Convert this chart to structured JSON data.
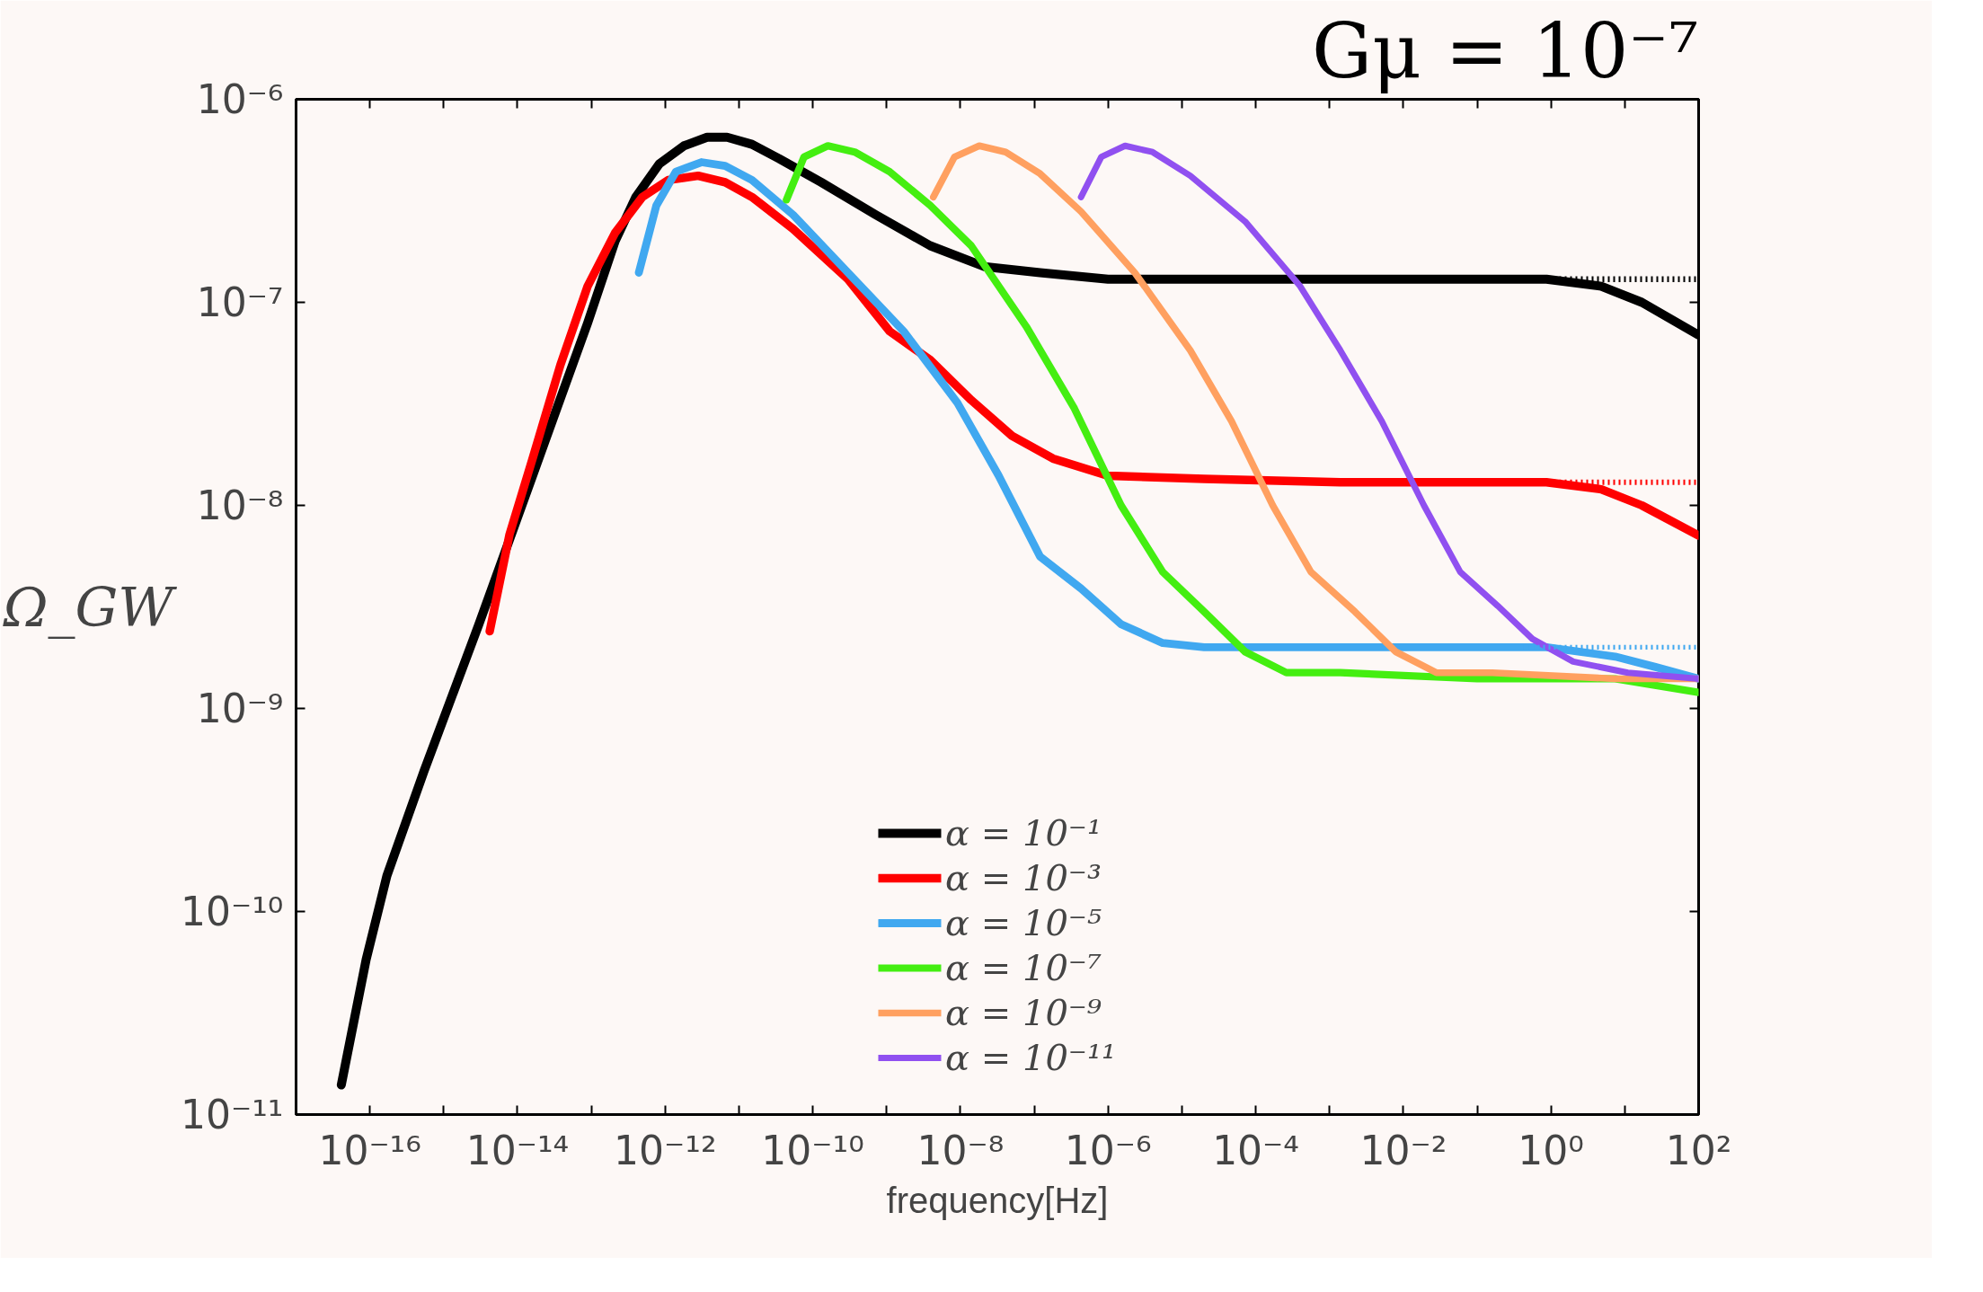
{
  "chart_data": {
    "type": "line",
    "title": "Gμ = 10⁻⁷",
    "xlabel": "frequency[Hz]",
    "ylabel": "Ω_GW",
    "log": "xy",
    "legend": "bottom",
    "line_style": "solid",
    "xlim": [
      1e-17,
      100
    ],
    "ylim": [
      1e-11,
      1e-06
    ],
    "xticks": [
      {
        "value": 1e-17,
        "label": null
      },
      {
        "value": 1e-16,
        "label": "10⁻¹⁶"
      },
      {
        "value": 1e-15,
        "label": null
      },
      {
        "value": 1e-14,
        "label": "10⁻¹⁴"
      },
      {
        "value": 1e-13,
        "label": null
      },
      {
        "value": 1e-12,
        "label": "10⁻¹²"
      },
      {
        "value": 1e-11,
        "label": null
      },
      {
        "value": 1e-10,
        "label": "10⁻¹⁰"
      },
      {
        "value": 1e-09,
        "label": null
      },
      {
        "value": 1e-08,
        "label": "10⁻⁸"
      },
      {
        "value": 1e-07,
        "label": null
      },
      {
        "value": 1e-06,
        "label": "10⁻⁶"
      },
      {
        "value": 1e-05,
        "label": null
      },
      {
        "value": 0.0001,
        "label": "10⁻⁴"
      },
      {
        "value": 0.001,
        "label": null
      },
      {
        "value": 0.01,
        "label": "10⁻²"
      },
      {
        "value": 0.1,
        "label": null
      },
      {
        "value": 1,
        "label": "10⁰"
      },
      {
        "value": 10,
        "label": null
      },
      {
        "value": 100,
        "label": "10²"
      }
    ],
    "yticks": [
      {
        "value": 1e-11,
        "label": "10⁻¹¹"
      },
      {
        "value": 1e-10,
        "label": "10⁻¹⁰"
      },
      {
        "value": 1e-09,
        "label": "10⁻⁹"
      },
      {
        "value": 1e-08,
        "label": "10⁻⁸"
      },
      {
        "value": 1e-07,
        "label": "10⁻⁷"
      },
      {
        "value": 1e-06,
        "label": "10⁻⁶"
      }
    ],
    "series": [
      {
        "name": "α = 10⁻¹",
        "color": "#000000",
        "x": [
          4.1e-17,
          8.9e-17,
          1.7e-16,
          5.4e-16,
          3e-15,
          1.6e-14,
          8.9e-14,
          2.1e-13,
          4e-13,
          8.3e-13,
          1.8e-12,
          3.7e-12,
          6.9e-12,
          1.5e-11,
          3.5e-11,
          1.3e-10,
          7.1e-10,
          3.9e-09,
          2.1e-08,
          1.2e-07,
          1e-06,
          2e-05,
          0.0014,
          0.1,
          0.87,
          4.8,
          17,
          100
        ],
        "values": [
          1.4e-11,
          5.8e-11,
          1.5e-10,
          4.9e-10,
          2.6e-09,
          1.4e-08,
          7.9e-08,
          2e-07,
          3.3e-07,
          4.8e-07,
          5.9e-07,
          6.5e-07,
          6.5e-07,
          6e-07,
          5.1e-07,
          3.9e-07,
          2.7e-07,
          1.9e-07,
          1.5e-07,
          1.4e-07,
          1.3e-07,
          1.3e-07,
          1.3e-07,
          1.3e-07,
          1.3e-07,
          1.2e-07,
          1e-07,
          6.9e-08
        ]
      },
      {
        "name": "α = 10⁻³",
        "color": "#ff0000",
        "x": [
          4.2e-15,
          7.8e-15,
          1.6e-14,
          3.8e-14,
          8.9e-14,
          2.1e-13,
          4.9e-13,
          1.1e-12,
          2.8e-12,
          6.5e-12,
          1.5e-11,
          5.4e-11,
          3e-10,
          1.1e-09,
          3.9e-09,
          1.4e-08,
          5e-08,
          1.8e-07,
          1e-06,
          2e-05,
          0.0014,
          0.87,
          4.8,
          17,
          100
        ],
        "values": [
          2.4e-09,
          7.2e-09,
          1.7e-08,
          4.9e-08,
          1.2e-07,
          2.2e-07,
          3.3e-07,
          4e-07,
          4.2e-07,
          3.9e-07,
          3.3e-07,
          2.3e-07,
          1.3e-07,
          7.2e-08,
          5.2e-08,
          3.3e-08,
          2.2e-08,
          1.7e-08,
          1.4e-08,
          1.35e-08,
          1.3e-08,
          1.3e-08,
          1.2e-08,
          1e-08,
          7.1e-09
        ]
      },
      {
        "name": "α = 10⁻⁵",
        "color": "#40a8f0",
        "x": [
          4.4e-13,
          7.6e-13,
          1.4e-12,
          3.1e-12,
          6.5e-12,
          1.5e-11,
          5.4e-11,
          3e-10,
          1.7e-09,
          9.1e-09,
          3.3e-08,
          1.2e-07,
          4.3e-07,
          1.5e-06,
          5.5e-06,
          2e-05,
          0.0014,
          0.87,
          7.4,
          26,
          100
        ],
        "values": [
          1.4e-07,
          3e-07,
          4.4e-07,
          4.9e-07,
          4.7e-07,
          4e-07,
          2.7e-07,
          1.4e-07,
          7.2e-08,
          3.2e-08,
          1.4e-08,
          5.6e-09,
          3.9e-09,
          2.6e-09,
          2.1e-09,
          2e-09,
          2e-09,
          2e-09,
          1.8e-09,
          1.6e-09,
          1.4e-09
        ]
      },
      {
        "name": "α = 10⁻⁷",
        "color": "#44ee11",
        "x": [
          4.4e-11,
          7.6e-11,
          1.6e-10,
          3.7e-10,
          1.1e-09,
          3.9e-09,
          1.4e-08,
          7.8e-08,
          3.5e-07,
          1.5e-06,
          5.5e-06,
          2e-05,
          7.2e-05,
          0.00026,
          0.0014,
          0.1,
          7.4,
          100
        ],
        "values": [
          3.2e-07,
          5.2e-07,
          5.9e-07,
          5.5e-07,
          4.4e-07,
          3e-07,
          1.9e-07,
          7.6e-08,
          3e-08,
          1e-08,
          4.7e-09,
          3e-09,
          1.9e-09,
          1.5e-09,
          1.5e-09,
          1.4e-09,
          1.4e-09,
          1.2e-09
        ]
      },
      {
        "name": "α = 10⁻⁹",
        "color": "#ffa060",
        "x": [
          4.3e-09,
          8.3e-09,
          1.8e-08,
          4.1e-08,
          1.2e-07,
          4.3e-07,
          2.3e-06,
          1.3e-05,
          4.7e-05,
          0.00017,
          0.00056,
          0.0022,
          0.0079,
          0.028,
          0.16,
          7.4,
          100
        ],
        "values": [
          3.3e-07,
          5.2e-07,
          5.9e-07,
          5.5e-07,
          4.3e-07,
          2.8e-07,
          1.4e-07,
          5.8e-08,
          2.6e-08,
          1e-08,
          4.7e-09,
          3e-09,
          1.9e-09,
          1.5e-09,
          1.5e-09,
          1.4e-09,
          1.4e-09
        ]
      },
      {
        "name": "α = 10⁻¹¹",
        "color": "#9050f0",
        "x": [
          4.3e-07,
          8.1e-07,
          1.7e-06,
          4e-06,
          1.3e-05,
          7.2e-05,
          0.0004,
          0.0014,
          0.0051,
          0.019,
          0.059,
          0.19,
          0.56,
          2.0,
          11,
          100
        ],
        "values": [
          3.3e-07,
          5.2e-07,
          5.9e-07,
          5.5e-07,
          4.2e-07,
          2.5e-07,
          1.2e-07,
          5.8e-08,
          2.6e-08,
          1e-08,
          4.7e-09,
          3.2e-09,
          2.2e-09,
          1.7e-09,
          1.5e-09,
          1.4e-09
        ]
      },
      {
        "color": "#000000",
        "line_style": "dotted",
        "x": [
          0.4,
          100
        ],
        "values": [
          1.3e-07,
          1.3e-07
        ]
      },
      {
        "color": "#ff0000",
        "line_style": "dotted",
        "x": [
          0.4,
          100
        ],
        "values": [
          1.3e-08,
          1.3e-08
        ]
      },
      {
        "color": "#40a8f0",
        "line_style": "dotted",
        "x": [
          0.4,
          100
        ],
        "values": [
          2e-09,
          2e-09
        ]
      }
    ]
  }
}
